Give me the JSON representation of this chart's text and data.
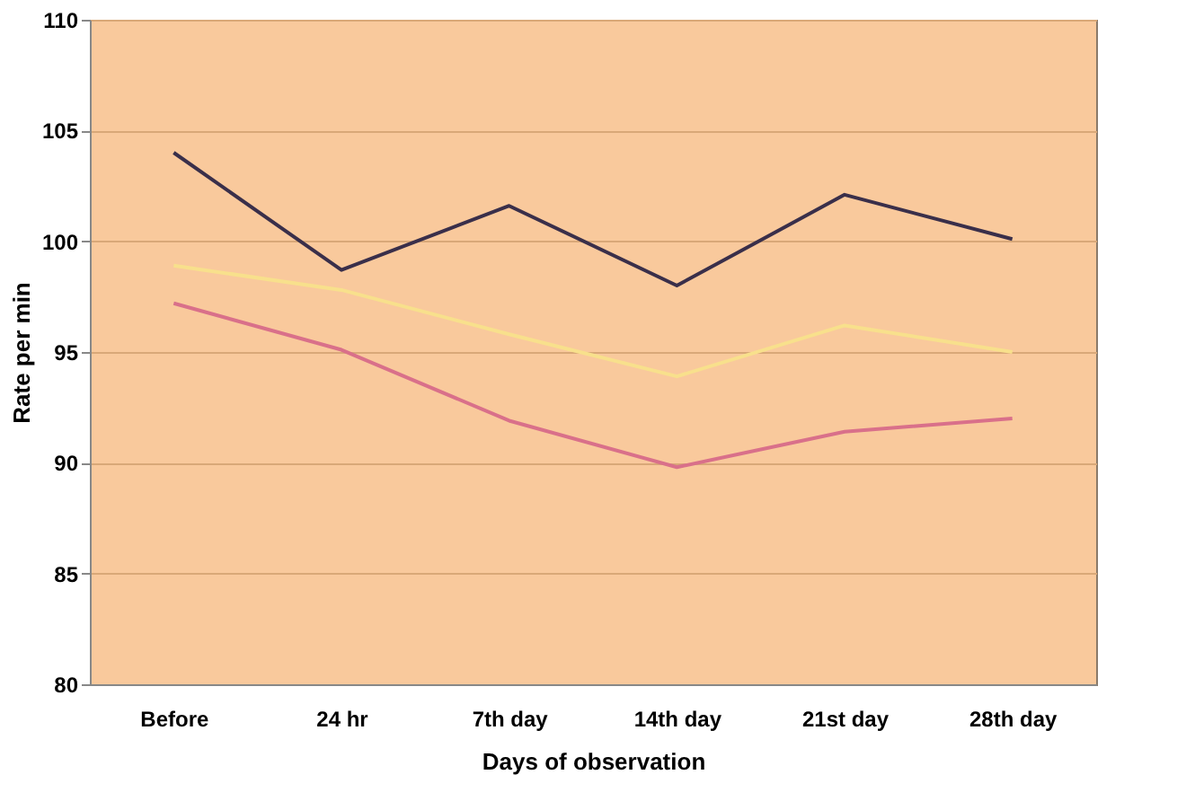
{
  "chart_data": {
    "type": "line",
    "xlabel": "Days of observation",
    "ylabel": "Rate per min",
    "categories": [
      "Before",
      "24 hr",
      "7th day",
      "14th day",
      "21st day",
      "28th day"
    ],
    "series": [
      {
        "color": "#3a2f4a",
        "values": [
          104.0,
          98.7,
          101.6,
          98.0,
          102.1,
          100.1
        ]
      },
      {
        "color": "#f8e08c",
        "values": [
          98.9,
          97.8,
          95.8,
          93.9,
          96.2,
          95.0
        ]
      },
      {
        "color": "#d9708a",
        "values": [
          97.2,
          95.1,
          91.9,
          89.8,
          91.4,
          92.0
        ]
      }
    ],
    "ylim": [
      80,
      110
    ],
    "yticks": [
      80,
      85,
      90,
      95,
      100,
      105,
      110
    ],
    "grid": "y",
    "legend": false,
    "marker": "none",
    "line_style": "solid"
  }
}
